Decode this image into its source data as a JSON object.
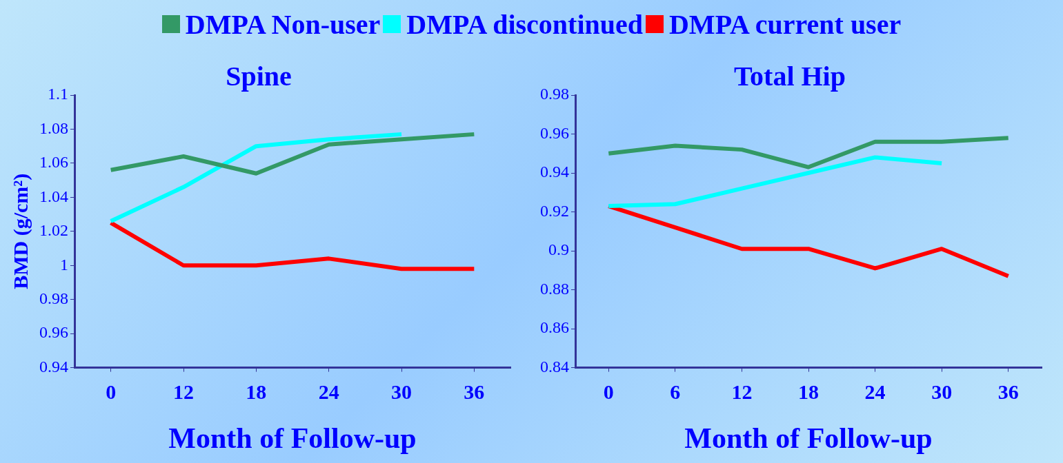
{
  "chart_data": [
    {
      "type": "line",
      "title": "Spine",
      "xlabel": "Month of Follow-up",
      "ylabel": "BMD (g/cm²)",
      "categories": [
        "0",
        "12",
        "18",
        "24",
        "30",
        "36"
      ],
      "ylim": [
        0.94,
        1.1
      ],
      "yticks": [
        0.94,
        0.96,
        0.98,
        1,
        1.02,
        1.04,
        1.06,
        1.08,
        1.1
      ],
      "legend": "top",
      "marker": "none",
      "grid": false,
      "series": [
        {
          "name": "DMPA Non-user",
          "color": "#339966",
          "values": [
            1.056,
            1.064,
            1.054,
            1.071,
            1.074,
            1.077
          ]
        },
        {
          "name": "DMPA discontinued",
          "color": "#00ffff",
          "values": [
            1.026,
            1.046,
            1.07,
            1.074,
            1.077,
            null
          ]
        },
        {
          "name": "DMPA current user",
          "color": "#ff0000",
          "values": [
            1.025,
            1.0,
            1.0,
            1.004,
            0.998,
            0.998
          ]
        }
      ]
    },
    {
      "type": "line",
      "title": "Total Hip",
      "xlabel": "Month of Follow-up",
      "categories": [
        "0",
        "6",
        "12",
        "18",
        "24",
        "30",
        "36"
      ],
      "ylim": [
        0.84,
        0.98
      ],
      "yticks": [
        0.84,
        0.86,
        0.88,
        0.9,
        0.92,
        0.94,
        0.96,
        0.98
      ],
      "marker": "none",
      "grid": false,
      "series": [
        {
          "color": "#339966",
          "values": [
            0.95,
            0.954,
            0.952,
            0.943,
            0.956,
            0.956,
            0.958
          ]
        },
        {
          "color": "#00ffff",
          "values": [
            0.923,
            0.924,
            0.932,
            0.94,
            0.948,
            0.945,
            null
          ]
        },
        {
          "color": "#ff0000",
          "values": [
            0.923,
            0.912,
            0.901,
            0.901,
            0.891,
            0.901,
            0.887
          ]
        }
      ]
    }
  ]
}
